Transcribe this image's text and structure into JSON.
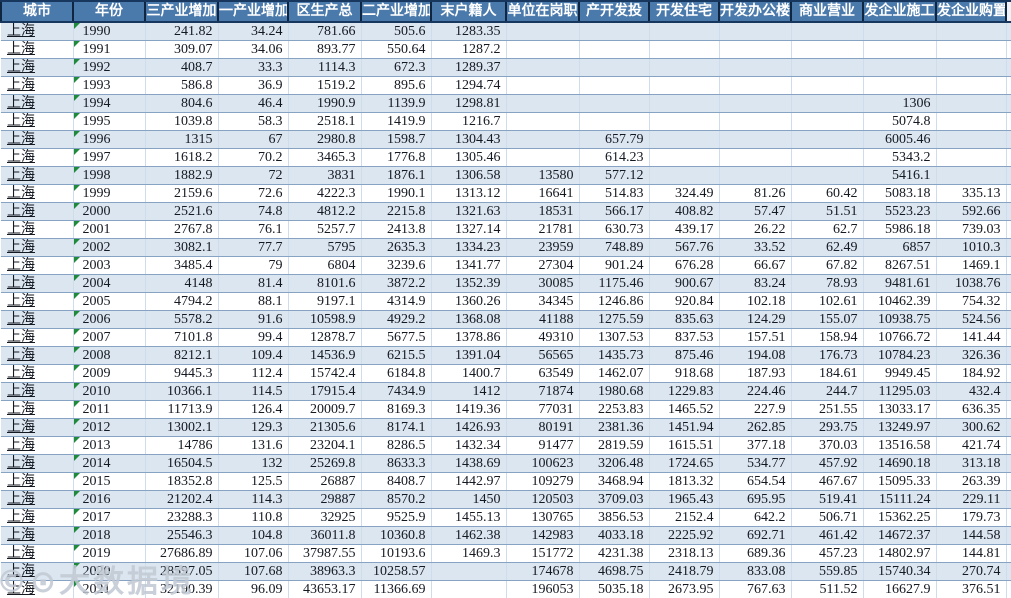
{
  "app": {
    "kind": "spreadsheet-table",
    "city_value": "上海"
  },
  "colors": {
    "header_bg": "#4a79ab",
    "header_text": "#ffffff",
    "header_border": "#17375e",
    "row_alt_bg": "#dce6f1",
    "row_bg": "#ffffff",
    "row_border": "#87a3c3",
    "col_border": "#cfdcec",
    "data_text": "#141821",
    "error_triangle": "#1f8a3b",
    "watermark_text_color": "#c1c8d2"
  },
  "watermark": {
    "text": "©⊙大数据境"
  },
  "columns": [
    {
      "label": "城市",
      "align": "left",
      "style": "city"
    },
    {
      "label": "年份",
      "align": "left",
      "style": "year"
    },
    {
      "label": "三产业增加",
      "align": "right"
    },
    {
      "label": "一产业增加",
      "align": "right"
    },
    {
      "label": "区生产总",
      "align": "right"
    },
    {
      "label": "二产业增加",
      "align": "right"
    },
    {
      "label": "末户籍人",
      "align": "right"
    },
    {
      "label": "单位在岗职",
      "align": "right"
    },
    {
      "label": "产开发投",
      "align": "right"
    },
    {
      "label": "开发住宅",
      "align": "right"
    },
    {
      "label": "开发办公楼",
      "align": "right"
    },
    {
      "label": "商业营业",
      "align": "right"
    },
    {
      "label": "发企业施工",
      "align": "right"
    },
    {
      "label": "发企业购置",
      "align": "right"
    }
  ],
  "rows": [
    [
      "上海",
      "1990",
      "241.82",
      "34.24",
      "781.66",
      "505.6",
      "1283.35",
      "",
      "",
      "",
      "",
      "",
      "",
      ""
    ],
    [
      "上海",
      "1991",
      "309.07",
      "34.06",
      "893.77",
      "550.64",
      "1287.2",
      "",
      "",
      "",
      "",
      "",
      "",
      ""
    ],
    [
      "上海",
      "1992",
      "408.7",
      "33.3",
      "1114.3",
      "672.3",
      "1289.37",
      "",
      "",
      "",
      "",
      "",
      "",
      ""
    ],
    [
      "上海",
      "1993",
      "586.8",
      "36.9",
      "1519.2",
      "895.6",
      "1294.74",
      "",
      "",
      "",
      "",
      "",
      "",
      ""
    ],
    [
      "上海",
      "1994",
      "804.6",
      "46.4",
      "1990.9",
      "1139.9",
      "1298.81",
      "",
      "",
      "",
      "",
      "",
      "1306",
      ""
    ],
    [
      "上海",
      "1995",
      "1039.8",
      "58.3",
      "2518.1",
      "1419.9",
      "1216.7",
      "",
      "",
      "",
      "",
      "",
      "5074.8",
      ""
    ],
    [
      "上海",
      "1996",
      "1315",
      "67",
      "2980.8",
      "1598.7",
      "1304.43",
      "",
      "657.79",
      "",
      "",
      "",
      "6005.46",
      ""
    ],
    [
      "上海",
      "1997",
      "1618.2",
      "70.2",
      "3465.3",
      "1776.8",
      "1305.46",
      "",
      "614.23",
      "",
      "",
      "",
      "5343.2",
      ""
    ],
    [
      "上海",
      "1998",
      "1882.9",
      "72",
      "3831",
      "1876.1",
      "1306.58",
      "13580",
      "577.12",
      "",
      "",
      "",
      "5416.1",
      ""
    ],
    [
      "上海",
      "1999",
      "2159.6",
      "72.6",
      "4222.3",
      "1990.1",
      "1313.12",
      "16641",
      "514.83",
      "324.49",
      "81.26",
      "60.42",
      "5083.18",
      "335.13"
    ],
    [
      "上海",
      "2000",
      "2521.6",
      "74.8",
      "4812.2",
      "2215.8",
      "1321.63",
      "18531",
      "566.17",
      "408.82",
      "57.47",
      "51.51",
      "5523.23",
      "592.66"
    ],
    [
      "上海",
      "2001",
      "2767.8",
      "76.1",
      "5257.7",
      "2413.8",
      "1327.14",
      "21781",
      "630.73",
      "439.17",
      "26.22",
      "62.7",
      "5986.18",
      "739.03"
    ],
    [
      "上海",
      "2002",
      "3082.1",
      "77.7",
      "5795",
      "2635.3",
      "1334.23",
      "23959",
      "748.89",
      "567.76",
      "33.52",
      "62.49",
      "6857",
      "1010.3"
    ],
    [
      "上海",
      "2003",
      "3485.4",
      "79",
      "6804",
      "3239.6",
      "1341.77",
      "27304",
      "901.24",
      "676.28",
      "66.67",
      "67.82",
      "8267.51",
      "1469.1"
    ],
    [
      "上海",
      "2004",
      "4148",
      "81.4",
      "8101.6",
      "3872.2",
      "1352.39",
      "30085",
      "1175.46",
      "900.67",
      "83.24",
      "78.93",
      "9481.61",
      "1038.76"
    ],
    [
      "上海",
      "2005",
      "4794.2",
      "88.1",
      "9197.1",
      "4314.9",
      "1360.26",
      "34345",
      "1246.86",
      "920.84",
      "102.18",
      "102.61",
      "10462.39",
      "754.32"
    ],
    [
      "上海",
      "2006",
      "5578.2",
      "91.6",
      "10598.9",
      "4929.2",
      "1368.08",
      "41188",
      "1275.59",
      "835.63",
      "124.29",
      "155.07",
      "10938.75",
      "524.56"
    ],
    [
      "上海",
      "2007",
      "7101.8",
      "99.4",
      "12878.7",
      "5677.5",
      "1378.86",
      "49310",
      "1307.53",
      "837.53",
      "157.51",
      "158.94",
      "10766.72",
      "141.44"
    ],
    [
      "上海",
      "2008",
      "8212.1",
      "109.4",
      "14536.9",
      "6215.5",
      "1391.04",
      "56565",
      "1435.73",
      "875.46",
      "194.08",
      "176.73",
      "10784.23",
      "326.36"
    ],
    [
      "上海",
      "2009",
      "9445.3",
      "112.4",
      "15742.4",
      "6184.8",
      "1400.7",
      "63549",
      "1462.07",
      "918.68",
      "187.93",
      "184.61",
      "9949.45",
      "184.92"
    ],
    [
      "上海",
      "2010",
      "10366.1",
      "114.5",
      "17915.4",
      "7434.9",
      "1412",
      "71874",
      "1980.68",
      "1229.83",
      "224.46",
      "244.7",
      "11295.03",
      "432.4"
    ],
    [
      "上海",
      "2011",
      "11713.9",
      "126.4",
      "20009.7",
      "8169.3",
      "1419.36",
      "77031",
      "2253.83",
      "1465.52",
      "227.9",
      "251.55",
      "13033.17",
      "636.35"
    ],
    [
      "上海",
      "2012",
      "13002.1",
      "129.3",
      "21305.6",
      "8174.1",
      "1426.93",
      "80191",
      "2381.36",
      "1451.94",
      "262.85",
      "293.75",
      "13249.97",
      "300.62"
    ],
    [
      "上海",
      "2013",
      "14786",
      "131.6",
      "23204.1",
      "8286.5",
      "1432.34",
      "91477",
      "2819.59",
      "1615.51",
      "377.18",
      "370.03",
      "13516.58",
      "421.74"
    ],
    [
      "上海",
      "2014",
      "16504.5",
      "132",
      "25269.8",
      "8633.3",
      "1438.69",
      "100623",
      "3206.48",
      "1724.65",
      "534.77",
      "457.92",
      "14690.18",
      "313.18"
    ],
    [
      "上海",
      "2015",
      "18352.8",
      "125.5",
      "26887",
      "8408.7",
      "1442.97",
      "109279",
      "3468.94",
      "1813.32",
      "654.54",
      "467.67",
      "15095.33",
      "263.39"
    ],
    [
      "上海",
      "2016",
      "21202.4",
      "114.3",
      "29887",
      "8570.2",
      "1450",
      "120503",
      "3709.03",
      "1965.43",
      "695.95",
      "519.41",
      "15111.24",
      "229.11"
    ],
    [
      "上海",
      "2017",
      "23288.3",
      "110.8",
      "32925",
      "9525.9",
      "1455.13",
      "130765",
      "3856.53",
      "2152.4",
      "642.2",
      "506.71",
      "15362.25",
      "179.73"
    ],
    [
      "上海",
      "2018",
      "25546.3",
      "104.8",
      "36011.8",
      "10360.8",
      "1462.38",
      "142983",
      "4033.18",
      "2225.92",
      "692.71",
      "461.42",
      "14672.37",
      "144.58"
    ],
    [
      "上海",
      "2019",
      "27686.89",
      "107.06",
      "37987.55",
      "10193.6",
      "1469.3",
      "151772",
      "4231.38",
      "2318.13",
      "689.36",
      "457.23",
      "14802.97",
      "144.81"
    ],
    [
      "上海",
      "2020",
      "28597.05",
      "107.68",
      "38963.3",
      "10258.57",
      "",
      "174678",
      "4698.75",
      "2418.79",
      "833.08",
      "559.85",
      "15740.34",
      "270.74"
    ],
    [
      "上海",
      "2021",
      "32190.39",
      "96.09",
      "43653.17",
      "11366.69",
      "",
      "196053",
      "5035.18",
      "2673.95",
      "767.63",
      "511.52",
      "16627.9",
      "376.51"
    ]
  ]
}
